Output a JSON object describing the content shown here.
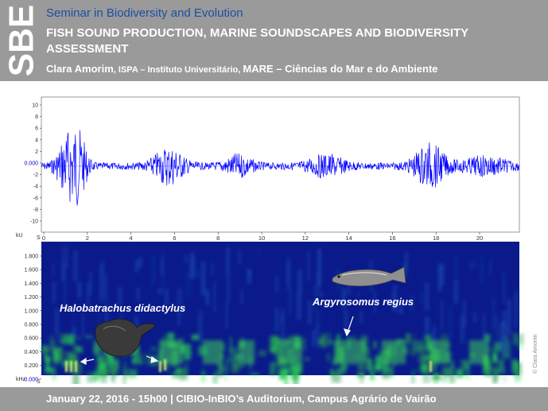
{
  "header": {
    "logo_text": "SBE",
    "seminar": "Seminar in Biodiversity and Evolution",
    "title": "FISH SOUND PRODUCTION, MARINE SOUNDSCAPES AND BIODIVERSITY ASSESSMENT",
    "author_name": "Clara Amorim",
    "author_sep": ", ",
    "affil_1": "ISPA – Instituto Universitário, ",
    "affil_2": "MARE – Ciências do Mar e do Ambiente"
  },
  "waveform": {
    "yticks": [
      "10",
      "8",
      "6",
      "4",
      "2",
      "0.000",
      "-2",
      "-4",
      "-6",
      "-8",
      "-10"
    ],
    "unit": "kU",
    "axis_start": "S"
  },
  "spectrogram": {
    "yticks": [
      "1.800",
      "1.600",
      "1.400",
      "1.200",
      "1.000",
      "0.800",
      "0.600",
      "0.400",
      "0.200",
      "0.000"
    ],
    "unit": "kHz",
    "axis_start": "S"
  },
  "xticks": [
    "0",
    "2",
    "4",
    "6",
    "8",
    "10",
    "12",
    "14",
    "16",
    "18",
    "20"
  ],
  "species": {
    "left": "Halobatrachus didactylus",
    "right": "Argyrosomus regius"
  },
  "copyright": "© Clara Amorim",
  "footer": {
    "text": "January 22, 2016 - 15h00 | CIBIO-InBIO’s Auditorium, Campus Agrário de Vairão"
  },
  "colors": {
    "header_bg": "#9a9a9a",
    "title_blue": "#1a4fa0",
    "wave": "#0000ff",
    "spec_bg": "#0a1a8a",
    "spec_energy": "#3fd65a"
  }
}
